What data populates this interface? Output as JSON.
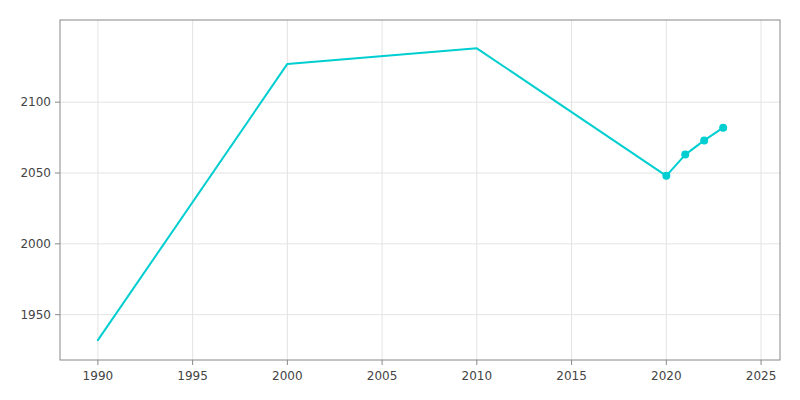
{
  "chart_data": {
    "type": "line",
    "x": [
      1990,
      2000,
      2010,
      2020,
      2021,
      2022,
      2023
    ],
    "series": [
      {
        "type": "line",
        "color": "#00CED1",
        "values": [
          1932,
          2127,
          2138,
          2048,
          2063,
          2073,
          2082
        ]
      },
      {
        "type": "scatter",
        "color": "#00CED1",
        "marker": "circle",
        "values": [
          null,
          null,
          null,
          2048,
          2063,
          2073,
          2082
        ]
      }
    ],
    "xlim": [
      1988,
      2026
    ],
    "ylim": [
      1918,
      2158
    ],
    "xticks": [
      1990,
      1995,
      2000,
      2005,
      2010,
      2015,
      2020,
      2025
    ],
    "yticks": [
      1950,
      2000,
      2050,
      2100
    ],
    "grid": true
  }
}
